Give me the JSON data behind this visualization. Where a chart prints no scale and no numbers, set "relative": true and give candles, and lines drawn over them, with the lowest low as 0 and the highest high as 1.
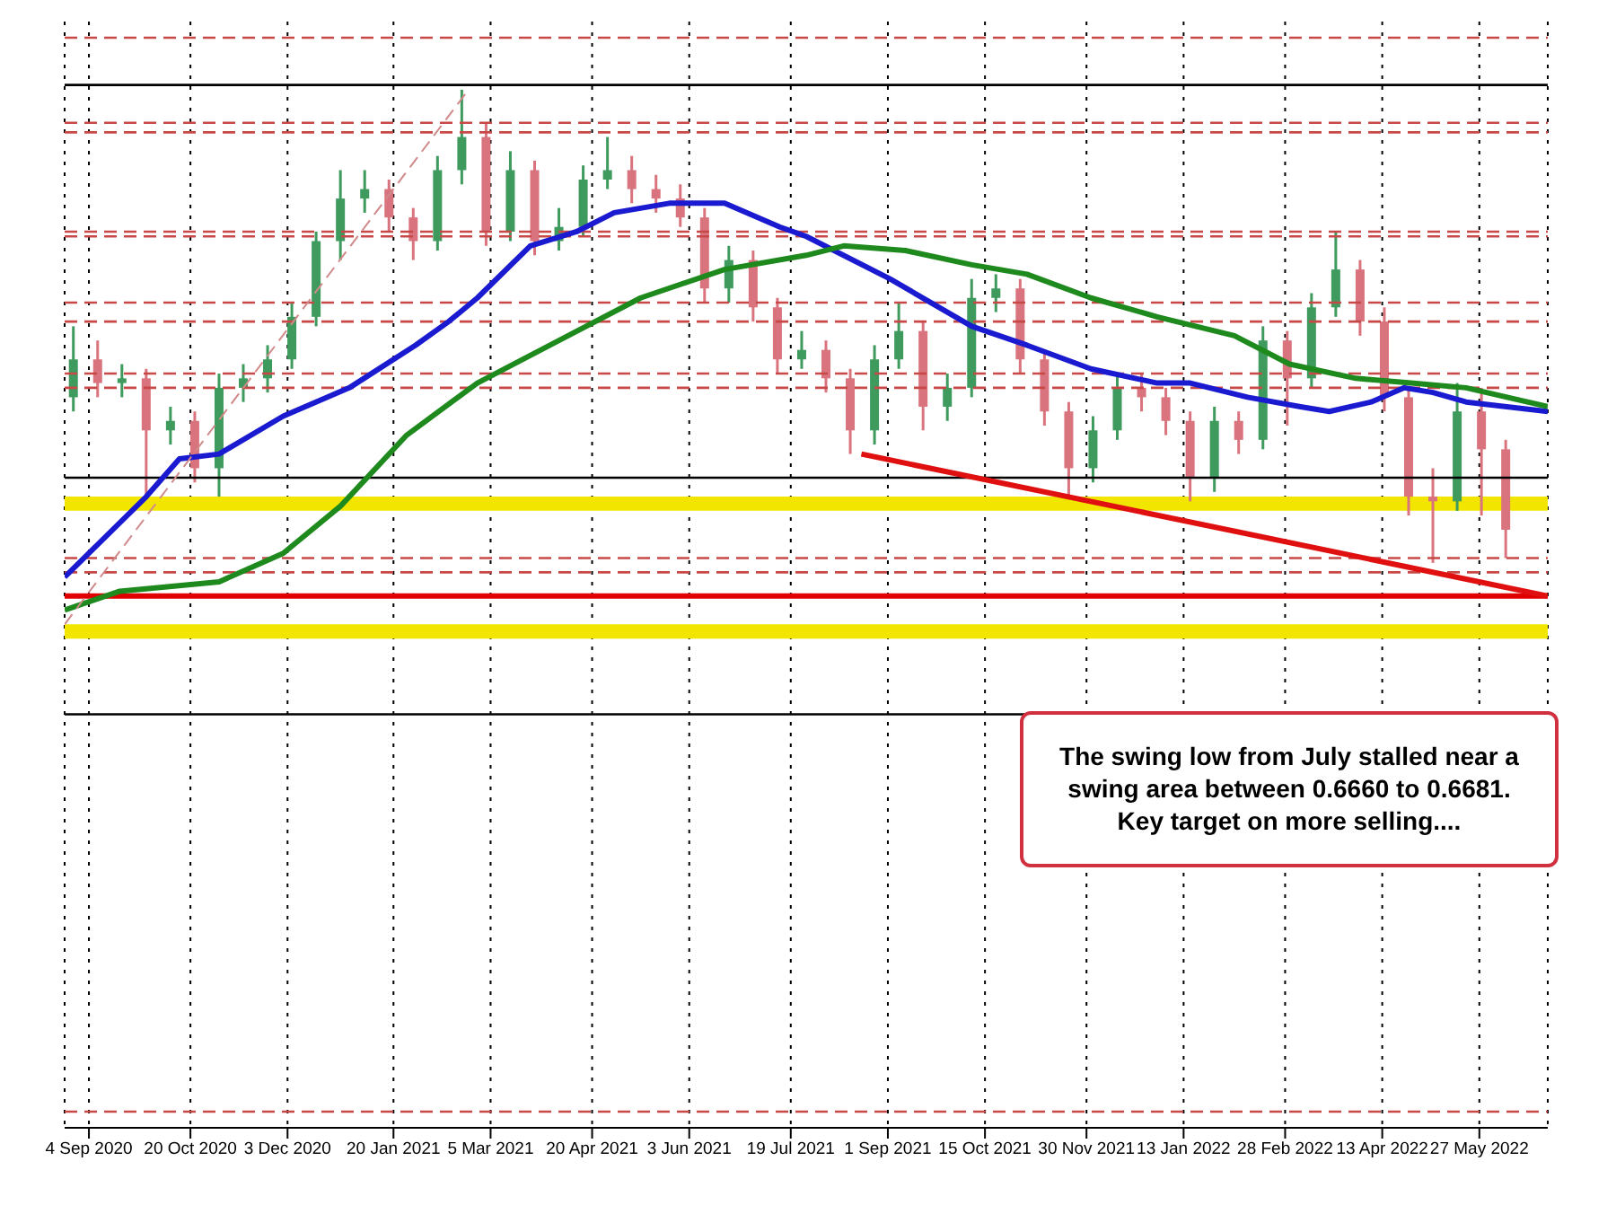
{
  "chart_data": {
    "type": "candlestick",
    "relative": true,
    "grid": "x",
    "tick_labels": "x",
    "marker": "none",
    "x": [
      "2020-08-28",
      "2020-09-08",
      "2020-09-19",
      "2020-09-30",
      "2020-10-11",
      "2020-10-22",
      "2020-11-02",
      "2020-11-13",
      "2020-11-24",
      "2020-12-05",
      "2020-12-16",
      "2020-12-27",
      "2021-01-07",
      "2021-01-18",
      "2021-01-29",
      "2021-02-09",
      "2021-02-20",
      "2021-03-03",
      "2021-03-14",
      "2021-03-25",
      "2021-04-05",
      "2021-04-16",
      "2021-04-27",
      "2021-05-08",
      "2021-05-19",
      "2021-05-30",
      "2021-06-10",
      "2021-06-21",
      "2021-07-02",
      "2021-07-13",
      "2021-07-24",
      "2021-08-04",
      "2021-08-15",
      "2021-08-26",
      "2021-09-06",
      "2021-09-17",
      "2021-09-28",
      "2021-10-09",
      "2021-10-20",
      "2021-10-31",
      "2021-11-11",
      "2021-11-22",
      "2021-12-03",
      "2021-12-14",
      "2021-12-25",
      "2022-01-05",
      "2022-01-16",
      "2022-01-27",
      "2022-02-07",
      "2022-02-18",
      "2022-03-01",
      "2022-03-12",
      "2022-03-23",
      "2022-04-03",
      "2022-04-14",
      "2022-04-25",
      "2022-05-06",
      "2022-05-17",
      "2022-05-28",
      "2022-06-08"
    ],
    "ohlc": [
      [
        0.35,
        0.5,
        0.32,
        0.43
      ],
      [
        0.43,
        0.47,
        0.35,
        0.38
      ],
      [
        0.38,
        0.42,
        0.35,
        0.39
      ],
      [
        0.39,
        0.41,
        0.14,
        0.28
      ],
      [
        0.28,
        0.33,
        0.25,
        0.3
      ],
      [
        0.3,
        0.32,
        0.17,
        0.2
      ],
      [
        0.2,
        0.4,
        0.14,
        0.37
      ],
      [
        0.37,
        0.42,
        0.34,
        0.39
      ],
      [
        0.39,
        0.46,
        0.36,
        0.43
      ],
      [
        0.43,
        0.55,
        0.41,
        0.52
      ],
      [
        0.52,
        0.7,
        0.5,
        0.68
      ],
      [
        0.68,
        0.83,
        0.64,
        0.77
      ],
      [
        0.77,
        0.83,
        0.74,
        0.79
      ],
      [
        0.79,
        0.81,
        0.7,
        0.73
      ],
      [
        0.73,
        0.75,
        0.64,
        0.68
      ],
      [
        0.68,
        0.86,
        0.66,
        0.83
      ],
      [
        0.83,
        1.0,
        0.8,
        0.9
      ],
      [
        0.9,
        0.93,
        0.67,
        0.7
      ],
      [
        0.7,
        0.87,
        0.68,
        0.83
      ],
      [
        0.83,
        0.85,
        0.65,
        0.68
      ],
      [
        0.68,
        0.75,
        0.66,
        0.71
      ],
      [
        0.71,
        0.84,
        0.69,
        0.81
      ],
      [
        0.81,
        0.9,
        0.79,
        0.83
      ],
      [
        0.83,
        0.86,
        0.76,
        0.79
      ],
      [
        0.79,
        0.82,
        0.74,
        0.77
      ],
      [
        0.77,
        0.8,
        0.71,
        0.73
      ],
      [
        0.73,
        0.75,
        0.55,
        0.58
      ],
      [
        0.58,
        0.67,
        0.55,
        0.64
      ],
      [
        0.64,
        0.66,
        0.51,
        0.54
      ],
      [
        0.54,
        0.56,
        0.4,
        0.43
      ],
      [
        0.43,
        0.49,
        0.41,
        0.45
      ],
      [
        0.45,
        0.47,
        0.36,
        0.39
      ],
      [
        0.39,
        0.41,
        0.23,
        0.28
      ],
      [
        0.28,
        0.46,
        0.25,
        0.43
      ],
      [
        0.43,
        0.55,
        0.41,
        0.49
      ],
      [
        0.49,
        0.51,
        0.28,
        0.33
      ],
      [
        0.33,
        0.4,
        0.3,
        0.37
      ],
      [
        0.37,
        0.6,
        0.35,
        0.56
      ],
      [
        0.56,
        0.61,
        0.53,
        0.58
      ],
      [
        0.58,
        0.6,
        0.4,
        0.43
      ],
      [
        0.43,
        0.45,
        0.29,
        0.32
      ],
      [
        0.32,
        0.34,
        0.14,
        0.2
      ],
      [
        0.2,
        0.31,
        0.17,
        0.28
      ],
      [
        0.28,
        0.4,
        0.26,
        0.37
      ],
      [
        0.37,
        0.4,
        0.32,
        0.35
      ],
      [
        0.35,
        0.37,
        0.27,
        0.3
      ],
      [
        0.3,
        0.32,
        0.13,
        0.18
      ],
      [
        0.18,
        0.33,
        0.15,
        0.3
      ],
      [
        0.3,
        0.32,
        0.23,
        0.26
      ],
      [
        0.26,
        0.5,
        0.24,
        0.47
      ],
      [
        0.47,
        0.49,
        0.29,
        0.39
      ],
      [
        0.39,
        0.57,
        0.37,
        0.54
      ],
      [
        0.54,
        0.7,
        0.52,
        0.62
      ],
      [
        0.62,
        0.64,
        0.48,
        0.51
      ],
      [
        0.51,
        0.54,
        0.32,
        0.35
      ],
      [
        0.35,
        0.37,
        0.1,
        0.14
      ],
      [
        0.14,
        0.2,
        0.0,
        0.13
      ],
      [
        0.13,
        0.38,
        0.11,
        0.32
      ],
      [
        0.32,
        0.37,
        0.1,
        0.24
      ],
      [
        0.24,
        0.26,
        0.01,
        0.07
      ]
    ],
    "colors": [
      "#3f9a5e",
      "#d9737d",
      "#3f9a5e",
      "#d9737d",
      "#3f9a5e",
      "#d9737d",
      "#3f9a5e",
      "#3f9a5e",
      "#3f9a5e",
      "#3f9a5e",
      "#3f9a5e",
      "#3f9a5e",
      "#3f9a5e",
      "#d9737d",
      "#d9737d",
      "#3f9a5e",
      "#3f9a5e",
      "#d9737d",
      "#3f9a5e",
      "#d9737d",
      "#3f9a5e",
      "#3f9a5e",
      "#3f9a5e",
      "#d9737d",
      "#d9737d",
      "#d9737d",
      "#d9737d",
      "#3f9a5e",
      "#d9737d",
      "#d9737d",
      "#3f9a5e",
      "#d9737d",
      "#d9737d",
      "#3f9a5e",
      "#3f9a5e",
      "#d9737d",
      "#3f9a5e",
      "#3f9a5e",
      "#3f9a5e",
      "#d9737d",
      "#d9737d",
      "#d9737d",
      "#3f9a5e",
      "#3f9a5e",
      "#d9737d",
      "#d9737d",
      "#d9737d",
      "#3f9a5e",
      "#d9737d",
      "#3f9a5e",
      "#d9737d",
      "#3f9a5e",
      "#3f9a5e",
      "#d9737d",
      "#d9737d",
      "#d9737d",
      "#d9737d",
      "#3f9a5e",
      "#d9737d",
      "#d9737d"
    ],
    "series": [
      {
        "type": "line",
        "color": "#1a1ad0",
        "x": [
          "2020-08-24",
          "2020-09-30",
          "2020-10-15",
          "2020-11-02",
          "2020-12-01",
          "2020-12-31",
          "2021-01-30",
          "2021-02-14",
          "2021-02-27",
          "2021-03-23",
          "2021-04-13",
          "2021-04-30",
          "2021-05-25",
          "2021-06-19",
          "2021-07-14",
          "2021-07-26",
          "2021-09-02",
          "2021-10-09",
          "2021-11-03",
          "2021-12-02",
          "2022-01-01",
          "2022-01-16",
          "2022-02-11",
          "2022-03-07",
          "2022-03-20",
          "2022-04-08",
          "2022-04-23",
          "2022-05-06",
          "2022-05-21",
          "2022-06-27"
        ],
        "values": [
          -0.03,
          0.14,
          0.22,
          0.23,
          0.31,
          0.37,
          0.46,
          0.51,
          0.56,
          0.67,
          0.7,
          0.74,
          0.76,
          0.76,
          0.71,
          0.69,
          0.6,
          0.5,
          0.46,
          0.41,
          0.38,
          0.38,
          0.35,
          0.33,
          0.32,
          0.34,
          0.37,
          0.36,
          0.34,
          0.32
        ]
      },
      {
        "type": "line",
        "color": "#1e8a1e",
        "x": [
          "2020-08-24",
          "2020-09-18",
          "2020-11-02",
          "2020-12-01",
          "2020-12-27",
          "2021-01-26",
          "2021-02-27",
          "2021-04-05",
          "2021-05-12",
          "2021-06-19",
          "2021-07-26",
          "2021-08-12",
          "2021-09-09",
          "2021-10-09",
          "2021-11-03",
          "2021-12-02",
          "2022-01-01",
          "2022-02-05",
          "2022-03-02",
          "2022-04-01",
          "2022-04-26",
          "2022-05-21",
          "2022-06-27"
        ],
        "values": [
          -0.1,
          -0.06,
          -0.04,
          0.02,
          0.12,
          0.27,
          0.38,
          0.47,
          0.56,
          0.62,
          0.65,
          0.67,
          0.66,
          0.63,
          0.61,
          0.56,
          0.52,
          0.48,
          0.42,
          0.39,
          0.38,
          0.37,
          0.33
        ]
      },
      {
        "type": "line",
        "color": "#e01010",
        "x": [
          "2021-08-20",
          "2022-06-27"
        ],
        "values": [
          0.23,
          -0.07
        ]
      },
      {
        "type": "line",
        "color": "#d08a8a",
        "line_style": "dashed",
        "x": [
          "2020-08-24",
          "2021-02-23"
        ],
        "values": [
          -0.13,
          1.0
        ]
      }
    ],
    "ref_lines": [
      {
        "axis": "y",
        "value": 1.11,
        "color": "#c84848",
        "line_style": "dashed"
      },
      {
        "axis": "y",
        "value": 1.01,
        "color": "#000000",
        "line_style": "solid"
      },
      {
        "axis": "y",
        "value": 0.93,
        "color": "#c84848",
        "line_style": "dashed"
      },
      {
        "axis": "y",
        "value": 0.91,
        "color": "#c84848",
        "line_style": "dashed"
      },
      {
        "axis": "y",
        "value": 0.7,
        "color": "#c84848",
        "line_style": "dashed"
      },
      {
        "axis": "y",
        "value": 0.69,
        "color": "#c84848",
        "line_style": "dashed"
      },
      {
        "axis": "y",
        "value": 0.55,
        "color": "#c84848",
        "line_style": "dashed"
      },
      {
        "axis": "y",
        "value": 0.51,
        "color": "#c84848",
        "line_style": "dashed"
      },
      {
        "axis": "y",
        "value": 0.4,
        "color": "#c84848",
        "line_style": "dashed"
      },
      {
        "axis": "y",
        "value": 0.37,
        "color": "#c84848",
        "line_style": "dashed"
      },
      {
        "axis": "y",
        "value": 0.18,
        "color": "#000000",
        "line_style": "solid"
      },
      {
        "axis": "y",
        "value": 0.01,
        "color": "#c84848",
        "line_style": "dashed"
      },
      {
        "axis": "y",
        "value": -0.02,
        "color": "#c84848",
        "line_style": "dashed"
      },
      {
        "axis": "y",
        "value": -0.07,
        "color": "#e00000",
        "line_style": "solid"
      },
      {
        "axis": "y",
        "value": -0.32,
        "color": "#000000",
        "line_style": "solid"
      },
      {
        "axis": "y",
        "value": -1.16,
        "color": "#c84848",
        "line_style": "dashed"
      }
    ],
    "bands": [
      {
        "axis": "y",
        "from": 0.11,
        "to": 0.14,
        "color": "#f2e600"
      },
      {
        "axis": "y",
        "from": -0.16,
        "to": -0.13,
        "color": "#f2e600"
      }
    ],
    "xlim": [
      "2020-08-24",
      "2022-06-27"
    ],
    "xticks": [
      {
        "value": "2020-09-04",
        "label": "4 Sep 2020"
      },
      {
        "value": "2020-10-20",
        "label": "20 Oct 2020"
      },
      {
        "value": "2020-12-03",
        "label": "3 Dec 2020"
      },
      {
        "value": "2021-01-20",
        "label": "20 Jan 2021"
      },
      {
        "value": "2021-03-05",
        "label": "5 Mar 2021"
      },
      {
        "value": "2021-04-20",
        "label": "20 Apr 2021"
      },
      {
        "value": "2021-06-03",
        "label": "3 Jun 2021"
      },
      {
        "value": "2021-07-19",
        "label": "19 Jul 2021"
      },
      {
        "value": "2021-09-01",
        "label": "1 Sep 2021"
      },
      {
        "value": "2021-10-15",
        "label": "15 Oct 2021"
      },
      {
        "value": "2021-11-30",
        "label": "30 Nov 2021"
      },
      {
        "value": "2022-01-13",
        "label": "13 Jan 2022"
      },
      {
        "value": "2022-02-28",
        "label": "28 Feb 2022"
      },
      {
        "value": "2022-04-13",
        "label": "13 Apr 2022"
      },
      {
        "value": "2022-05-27",
        "label": "27 May 2022"
      }
    ],
    "annotations": [
      "The swing low from July stalled near a swing area between 0.6660 to 0.6681.  Key target on more selling...."
    ]
  }
}
